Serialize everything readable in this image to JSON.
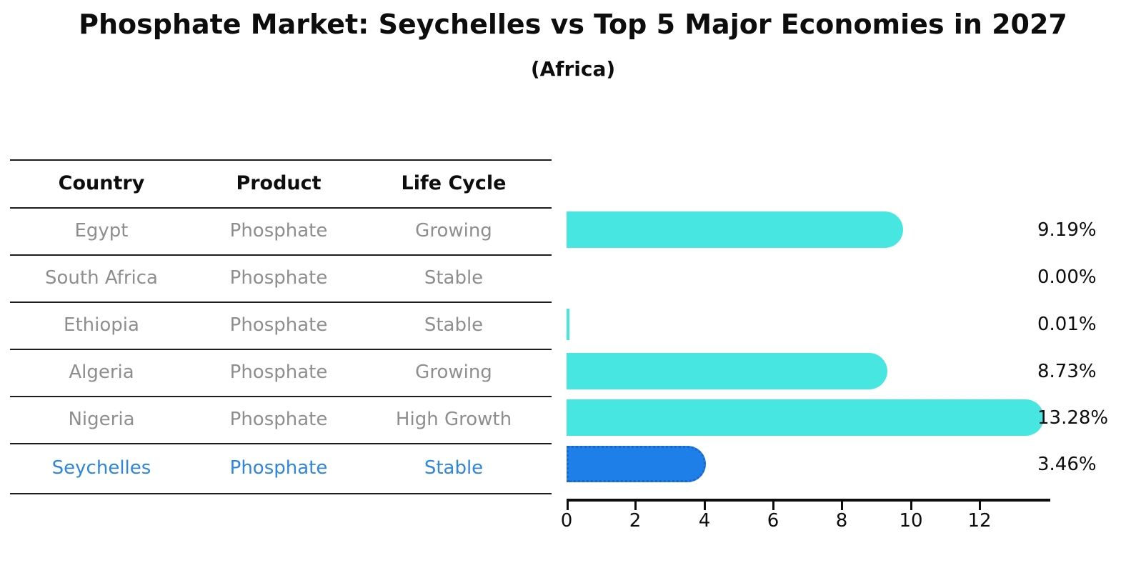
{
  "title": "Phosphate Market: Seychelles vs Top 5 Major Economies in 2027",
  "subtitle": "(Africa)",
  "table": {
    "headers": [
      "Country",
      "Product",
      "Life Cycle"
    ],
    "rows": [
      {
        "country": "Egypt",
        "product": "Phosphate",
        "life_cycle": "Growing",
        "highlighted": false
      },
      {
        "country": "South Africa",
        "product": "Phosphate",
        "life_cycle": "Stable",
        "highlighted": false
      },
      {
        "country": "Ethiopia",
        "product": "Phosphate",
        "life_cycle": "Stable",
        "highlighted": false
      },
      {
        "country": "Algeria",
        "product": "Phosphate",
        "life_cycle": "Growing",
        "highlighted": false
      },
      {
        "country": "Nigeria",
        "product": "Phosphate",
        "life_cycle": "High Growth",
        "highlighted": false
      },
      {
        "country": "Seychelles",
        "product": "Phosphate",
        "life_cycle": "Stable",
        "highlighted": true
      }
    ]
  },
  "chart_data": {
    "type": "bar",
    "orientation": "horizontal",
    "title": "Phosphate Market: Seychelles vs Top 5 Major Economies in 2027 (Africa)",
    "categories": [
      "Egypt",
      "South Africa",
      "Ethiopia",
      "Algeria",
      "Nigeria",
      "Seychelles"
    ],
    "values": [
      9.19,
      0.0,
      0.01,
      8.73,
      13.28,
      3.46
    ],
    "value_labels": [
      "9.19%",
      "0.00%",
      "0.01%",
      "8.73%",
      "13.28%",
      "3.46%"
    ],
    "x_ticks": [
      "0",
      "2",
      "4",
      "6",
      "8",
      "10",
      "12"
    ],
    "xlim": [
      0,
      14
    ],
    "grid": false,
    "legend": "none",
    "bar_color": "#48e6e1",
    "highlight_index": 5,
    "highlight_color": "#1e7fe8",
    "highlight_border_color": "#1a66cc",
    "value_label_color": "#0d0d0d"
  },
  "colors": {
    "row_text": "#8e8e8e",
    "highlight_row_text": "#2e86de",
    "table_line": "#1d1d1d",
    "axis": "#0d0d0d"
  }
}
